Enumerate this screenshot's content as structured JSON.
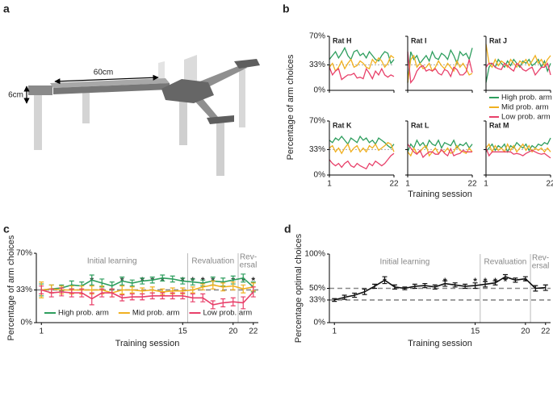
{
  "panel_labels": [
    "a",
    "b",
    "c",
    "d"
  ],
  "apparatus": {
    "length_label": "60cm",
    "height_label": "6cm"
  },
  "chart_data": [
    {
      "type": "small-multiples",
      "ylabel": "Percentage of arm choices",
      "xlabel": "Training session",
      "x": [
        1,
        2,
        3,
        4,
        5,
        6,
        7,
        8,
        9,
        10,
        11,
        12,
        13,
        14,
        15,
        16,
        17,
        18,
        19,
        20,
        21,
        22
      ],
      "xlim": [
        1,
        22
      ],
      "xticks": [
        1,
        22
      ],
      "ylim": [
        0,
        70
      ],
      "yticks": [
        {
          "value": 0,
          "label": "0%"
        },
        {
          "value": 33,
          "label": "33%"
        },
        {
          "value": 70,
          "label": "70%"
        }
      ],
      "reference_line": 33,
      "legend": [
        {
          "name": "High prob. arm",
          "color": "#2e9e5e"
        },
        {
          "name": "Mid prob. arm",
          "color": "#f0b020"
        },
        {
          "name": "Low prob. arm",
          "color": "#e8406a"
        }
      ],
      "panels": [
        {
          "title": "Rat H",
          "series": [
            {
              "values": [
                40,
                45,
                50,
                42,
                48,
                55,
                45,
                40,
                50,
                52,
                45,
                48,
                42,
                50,
                45,
                40,
                38,
                45,
                50,
                48,
                35,
                40
              ]
            },
            {
              "values": [
                30,
                35,
                25,
                30,
                38,
                28,
                35,
                40,
                30,
                32,
                38,
                35,
                30,
                28,
                40,
                35,
                42,
                38,
                30,
                35,
                45,
                42
              ]
            },
            {
              "values": [
                30,
                20,
                25,
                28,
                14,
                17,
                20,
                20,
                22,
                16,
                17,
                15,
                28,
                22,
                15,
                25,
                20,
                28,
                20,
                17,
                20,
                18
              ]
            }
          ]
        },
        {
          "title": "Rat I",
          "series": [
            {
              "values": [
                10,
                50,
                40,
                45,
                35,
                40,
                45,
                38,
                50,
                42,
                40,
                48,
                45,
                40,
                52,
                45,
                35,
                50,
                45,
                48,
                40,
                55
              ]
            },
            {
              "values": [
                10,
                40,
                45,
                30,
                35,
                28,
                30,
                35,
                25,
                30,
                38,
                32,
                28,
                35,
                30,
                25,
                38,
                30,
                35,
                28,
                20,
                22
              ]
            },
            {
              "values": [
                50,
                10,
                15,
                25,
                30,
                32,
                25,
                27,
                25,
                28,
                22,
                20,
                27,
                25,
                18,
                30,
                27,
                20,
                20,
                24,
                40,
                23
              ]
            }
          ]
        },
        {
          "title": "Rat J",
          "series": [
            {
              "values": [
                10,
                30,
                35,
                30,
                40,
                35,
                30,
                38,
                32,
                40,
                35,
                30,
                38,
                35,
                40,
                32,
                35,
                40,
                30,
                38,
                25,
                35
              ]
            },
            {
              "values": [
                60,
                35,
                30,
                40,
                32,
                38,
                35,
                30,
                40,
                35,
                30,
                38,
                35,
                40,
                32,
                38,
                45,
                35,
                40,
                32,
                40,
                45
              ]
            },
            {
              "values": [
                30,
                35,
                35,
                30,
                28,
                27,
                35,
                32,
                28,
                25,
                35,
                32,
                27,
                25,
                28,
                30,
                20,
                25,
                30,
                30,
                35,
                20
              ]
            }
          ]
        },
        {
          "title": "Rat K",
          "series": [
            {
              "values": [
                45,
                42,
                48,
                45,
                50,
                45,
                40,
                48,
                45,
                42,
                50,
                45,
                48,
                42,
                45,
                40,
                48,
                45,
                42,
                38,
                35,
                40
              ]
            },
            {
              "values": [
                35,
                38,
                30,
                35,
                28,
                35,
                40,
                30,
                35,
                38,
                30,
                35,
                30,
                38,
                35,
                40,
                32,
                35,
                38,
                42,
                40,
                30
              ]
            },
            {
              "values": [
                20,
                15,
                12,
                15,
                10,
                15,
                18,
                12,
                10,
                15,
                12,
                10,
                8,
                15,
                12,
                18,
                15,
                12,
                15,
                20,
                25,
                28
              ]
            }
          ]
        },
        {
          "title": "Rat L",
          "series": [
            {
              "values": [
                30,
                40,
                35,
                45,
                38,
                42,
                35,
                45,
                40,
                38,
                45,
                35,
                42,
                40,
                38,
                45,
                35,
                40,
                38,
                42,
                35,
                40
              ]
            },
            {
              "values": [
                30,
                25,
                35,
                28,
                30,
                35,
                38,
                25,
                30,
                35,
                28,
                32,
                30,
                35,
                28,
                30,
                38,
                32,
                30,
                28,
                35,
                30
              ]
            },
            {
              "values": [
                40,
                35,
                30,
                27,
                32,
                23,
                27,
                30,
                30,
                27,
                27,
                33,
                28,
                25,
                34,
                25,
                27,
                28,
                32,
                30,
                30,
                30
              ]
            }
          ]
        },
        {
          "title": "Rat M",
          "series": [
            {
              "values": [
                30,
                35,
                40,
                32,
                38,
                35,
                40,
                30,
                38,
                35,
                42,
                38,
                35,
                40,
                32,
                38,
                35,
                40,
                38,
                42,
                40,
                48
              ]
            },
            {
              "values": [
                35,
                40,
                30,
                38,
                32,
                35,
                30,
                40,
                32,
                38,
                30,
                35,
                40,
                32,
                38,
                30,
                35,
                32,
                35,
                30,
                35,
                30
              ]
            },
            {
              "values": [
                35,
                25,
                30,
                30,
                30,
                30,
                30,
                30,
                30,
                27,
                28,
                27,
                25,
                28,
                30,
                32,
                30,
                28,
                27,
                28,
                25,
                22
              ]
            }
          ]
        }
      ]
    },
    {
      "type": "errorline",
      "ylabel": "Percentage of arm choices",
      "xlabel": "Training session",
      "x": [
        1,
        2,
        3,
        4,
        5,
        6,
        7,
        8,
        9,
        10,
        11,
        12,
        13,
        14,
        15,
        16,
        17,
        18,
        19,
        20,
        21,
        22
      ],
      "xlim": [
        0.5,
        22.5
      ],
      "xticks": [
        1,
        15,
        20,
        22
      ],
      "ylim": [
        0,
        70
      ],
      "yticks": [
        {
          "value": 0,
          "label": "0%"
        },
        {
          "value": 33,
          "label": "33%"
        },
        {
          "value": 70,
          "label": "70%"
        }
      ],
      "reference_lines": [
        33
      ],
      "phase_boundaries": [
        15.5,
        20.5
      ],
      "phases": [
        {
          "lines": [
            "Initial learning"
          ]
        },
        {
          "lines": [
            "Revaluation"
          ]
        },
        {
          "lines": [
            "Rev-",
            "ersal"
          ]
        }
      ],
      "significance": {
        "label": "*",
        "x": [
          6,
          9,
          11,
          12,
          13,
          15,
          16,
          17,
          18,
          20,
          21,
          22
        ]
      },
      "legend": "bottom",
      "series": [
        {
          "name": "High prob. arm",
          "color": "#2e9e5e",
          "values": [
            33,
            34,
            35,
            38,
            37,
            43,
            40,
            37,
            42,
            40,
            42,
            43,
            45,
            44,
            42,
            41,
            40,
            42,
            41,
            43,
            45,
            36
          ],
          "errors": [
            6,
            4,
            3,
            4,
            4,
            5,
            4,
            4,
            4,
            3,
            3,
            3,
            3,
            3,
            3,
            3,
            3,
            4,
            4,
            4,
            4,
            5
          ]
        },
        {
          "name": "Mid prob. arm",
          "color": "#f0b020",
          "values": [
            33,
            34,
            33,
            33,
            33,
            33,
            33,
            30,
            33,
            33,
            32,
            33,
            31,
            32,
            32,
            33,
            36,
            38,
            36,
            37,
            34,
            36
          ],
          "errors": [
            8,
            4,
            4,
            4,
            4,
            4,
            4,
            4,
            4,
            3,
            3,
            3,
            3,
            3,
            3,
            3,
            3,
            4,
            4,
            4,
            4,
            4
          ]
        },
        {
          "name": "Low prob. arm",
          "color": "#e8406a",
          "values": [
            33,
            30,
            31,
            30,
            30,
            24,
            30,
            30,
            25,
            26,
            26,
            27,
            27,
            27,
            27,
            25,
            25,
            18,
            20,
            21,
            20,
            31
          ],
          "errors": [
            4,
            4,
            4,
            4,
            4,
            6,
            4,
            4,
            3,
            3,
            3,
            3,
            3,
            3,
            3,
            4,
            4,
            4,
            4,
            4,
            6,
            5
          ]
        }
      ]
    },
    {
      "type": "errorline",
      "ylabel": "Percentage optimal choices",
      "xlabel": "Training session",
      "x": [
        1,
        2,
        3,
        4,
        5,
        6,
        7,
        8,
        9,
        10,
        11,
        12,
        13,
        14,
        15,
        16,
        17,
        18,
        19,
        20,
        21,
        22
      ],
      "xlim": [
        0.5,
        22.5
      ],
      "xticks": [
        1,
        15,
        20,
        22
      ],
      "ylim": [
        0,
        100
      ],
      "yticks": [
        {
          "value": 0,
          "label": "0%"
        },
        {
          "value": 33,
          "label": "33%"
        },
        {
          "value": 50,
          "label": "50%"
        },
        {
          "value": 100,
          "label": "100%"
        }
      ],
      "reference_lines": [
        33,
        50
      ],
      "phase_boundaries": [
        15.5,
        20.5
      ],
      "phases": [
        {
          "lines": [
            "Initial learning"
          ]
        },
        {
          "lines": [
            "Revaluation"
          ]
        },
        {
          "lines": [
            "Rev-",
            "ersal"
          ]
        }
      ],
      "significance": {
        "label": "*",
        "x": [
          6,
          12,
          15,
          16,
          17,
          18,
          20
        ]
      },
      "series": [
        {
          "color": "#111111",
          "values": [
            33,
            37,
            40,
            45,
            53,
            62,
            52,
            50,
            53,
            54,
            52,
            57,
            55,
            53,
            54,
            56,
            58,
            67,
            62,
            64,
            50,
            51
          ],
          "errors": [
            2,
            3,
            3,
            4,
            3,
            5,
            3,
            2,
            3,
            3,
            3,
            4,
            3,
            3,
            4,
            4,
            3,
            3,
            3,
            3,
            4,
            4
          ]
        }
      ]
    }
  ]
}
